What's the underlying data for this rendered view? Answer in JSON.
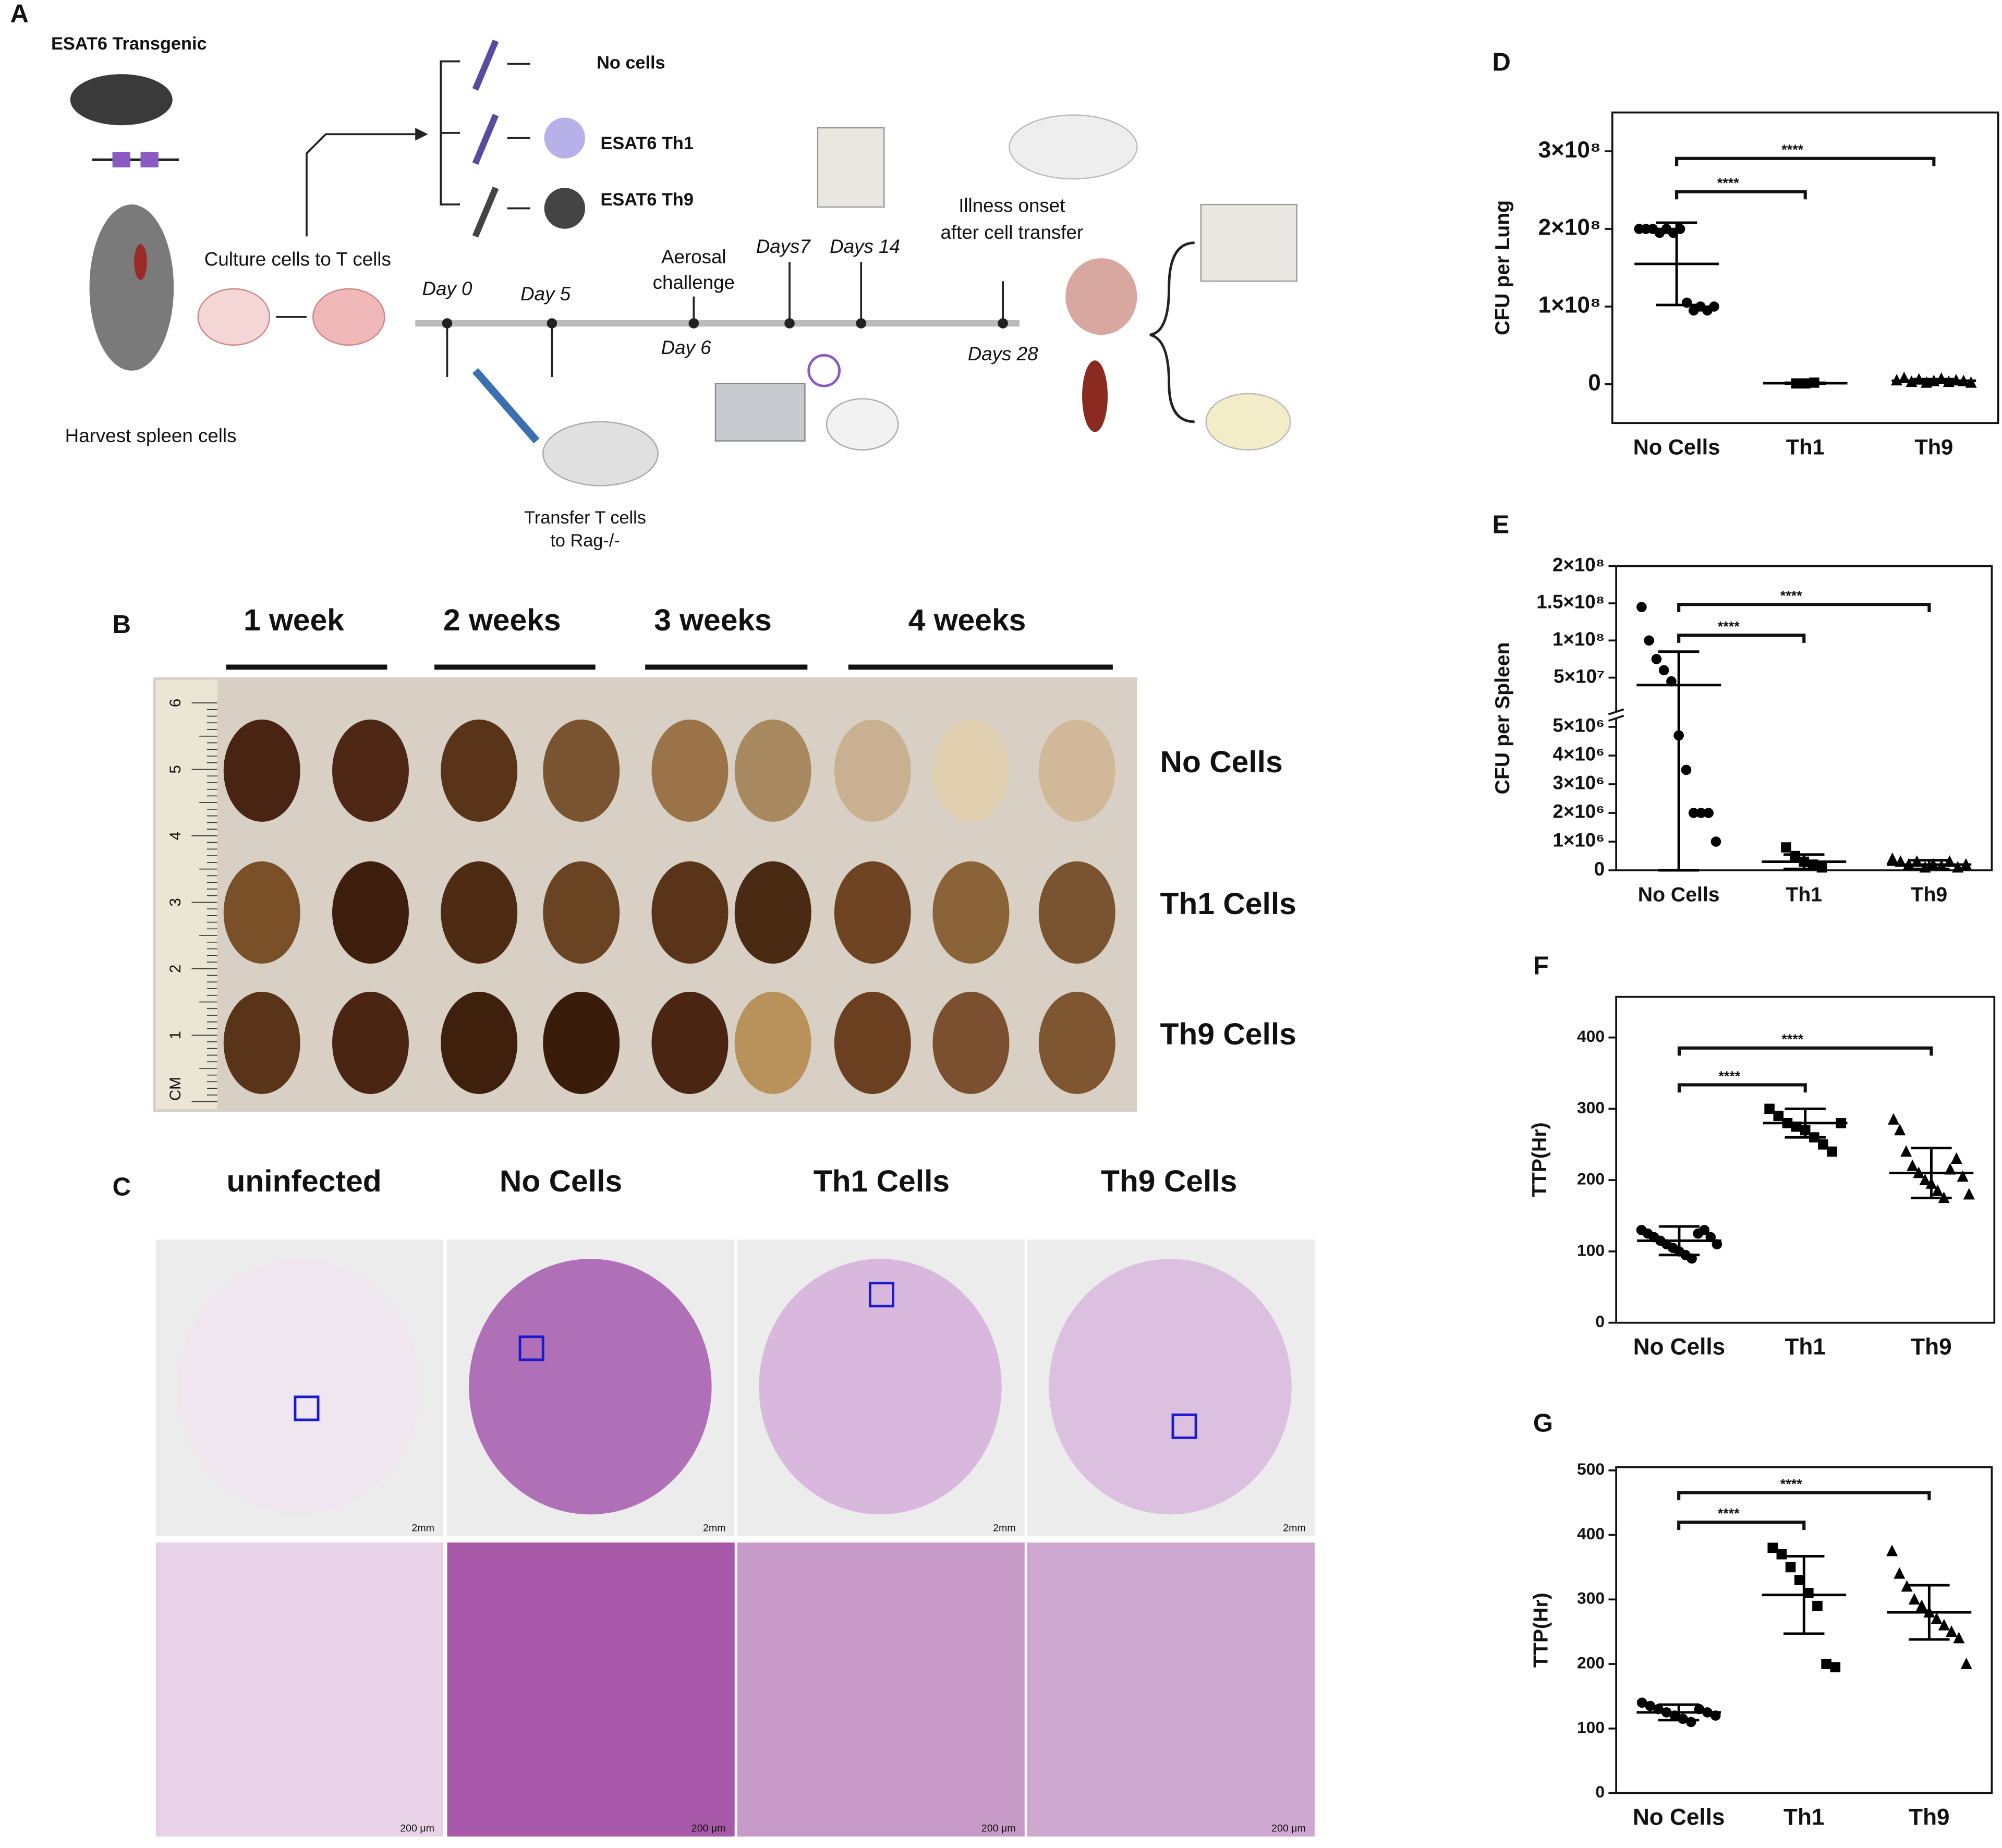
{
  "panel_a": {
    "label": "A",
    "strain": "ESAT6 Transgenic",
    "harvest": "Harvest spleen cells",
    "culture": "Culture cells to T cells",
    "groups": [
      "No cells",
      "ESAT6 Th1",
      "ESAT6 Th9"
    ],
    "timeline": {
      "day0": "Day 0",
      "day5": "Day 5",
      "aerosol": [
        "Aerosal",
        "challenge"
      ],
      "day6": "Day 6",
      "days7": "Days7",
      "days14": "Days 14",
      "illness": [
        "Illness onset",
        "after cell transfer"
      ],
      "days28": "Days 28"
    },
    "transfer": [
      "Transfer  T cells",
      "to Rag-/-"
    ]
  },
  "panel_b": {
    "label": "B",
    "columns": [
      "1 week",
      "2 weeks",
      "3 weeks",
      "4 weeks"
    ],
    "rows": [
      "No Cells",
      "Th1 Cells",
      "Th9 Cells"
    ],
    "ruler_unit": "CM",
    "ruler_numbers": [
      "1",
      "2",
      "3",
      "4",
      "5",
      "6"
    ]
  },
  "panel_c": {
    "label": "C",
    "columns": [
      "uninfected",
      "No Cells",
      "Th1 Cells",
      "Th9 Cells"
    ],
    "scale_top": "2mm",
    "scale_bottom": "200 μm"
  },
  "chart_data": [
    {
      "type": "scatter",
      "panel_label": "D",
      "y_label": "CFU per Lung",
      "categories": [
        "No Cells",
        "Th1",
        "Th9"
      ],
      "markers": [
        "circle",
        "square",
        "triangle"
      ],
      "color": "#000000",
      "groups": [
        [
          200000000,
          200000000,
          200000000,
          195000000,
          200000000,
          195000000,
          200000000,
          105000000,
          95000000,
          100000000,
          95000000,
          100000000
        ],
        [
          1000000,
          1000000,
          2000000
        ],
        [
          5000000,
          8000000,
          3000000,
          6000000,
          2000000,
          4000000,
          7000000,
          3000000,
          5000000,
          4000000,
          2000000
        ]
      ],
      "mean": [
        155000000,
        1300000,
        4500000
      ],
      "sd": [
        53000000,
        500000,
        2000000
      ],
      "ylim": [
        -50000000,
        350000000
      ],
      "yticks": [
        0,
        {
          "value": 100000000,
          "label": "1×10⁸"
        },
        {
          "value": 200000000,
          "label": "2×10⁸"
        },
        {
          "value": 300000000,
          "label": "3×10⁸"
        }
      ],
      "annotations": [
        "****",
        "****"
      ]
    },
    {
      "type": "scatter",
      "panel_label": "E",
      "y_label": "CFU per Spleen",
      "categories": [
        "No Cells",
        "Th1",
        "Th9"
      ],
      "markers": [
        "circle",
        "square",
        "triangle"
      ],
      "color": "#000000",
      "groups": [
        [
          145000000,
          100000000,
          75000000,
          60000000,
          45000000,
          4700000,
          3500000,
          2000000,
          2000000,
          2000000,
          1000000
        ],
        [
          800000,
          500000,
          300000,
          200000,
          100000
        ],
        [
          400000,
          300000,
          200000,
          300000,
          100000,
          200000,
          150000,
          300000,
          100000,
          200000
        ]
      ],
      "mean": [
        40000000,
        300000,
        200000
      ],
      "sd": [
        45000000,
        250000,
        150000
      ],
      "ylim": [
        0,
        5300000
      ],
      "yticks": [
        0,
        {
          "value": 1000000,
          "label": "1×10⁶"
        },
        {
          "value": 2000000,
          "label": "2×10⁶"
        },
        {
          "value": 3000000,
          "label": "3×10⁶"
        },
        {
          "value": 4000000,
          "label": "4×10⁶"
        },
        {
          "value": 5000000,
          "label": "5×10⁶"
        }
      ],
      "y_upper_lim": [
        4000000,
        200000000
      ],
      "y_upper_ticks": [
        {
          "value": 50000000,
          "label": "5×10⁷"
        },
        {
          "value": 100000000,
          "label": "1×10⁸"
        },
        {
          "value": 150000000,
          "label": "1.5×10⁸"
        },
        {
          "value": 200000000,
          "label": "2×10⁸"
        }
      ],
      "annotations": [
        "****",
        "****"
      ]
    },
    {
      "type": "scatter",
      "panel_label": "F",
      "y_label": "TTP(Hr)",
      "categories": [
        "No Cells",
        "Th1",
        "Th9"
      ],
      "markers": [
        "circle",
        "square",
        "triangle"
      ],
      "color": "#000000",
      "groups": [
        [
          130,
          125,
          120,
          115,
          110,
          105,
          100,
          95,
          90,
          125,
          130,
          120,
          110
        ],
        [
          300,
          290,
          280,
          275,
          270,
          260,
          250,
          240,
          280
        ],
        [
          285,
          270,
          240,
          220,
          210,
          200,
          195,
          185,
          175,
          215,
          230,
          205,
          180
        ]
      ],
      "mean": [
        115,
        280,
        210
      ],
      "sd": [
        20,
        20,
        35
      ],
      "ylim": [
        0,
        457
      ],
      "yticks": [
        0,
        100,
        200,
        300,
        400
      ],
      "annotations": [
        "****",
        "****"
      ]
    },
    {
      "type": "scatter",
      "panel_label": "G",
      "y_label": "TTP(Hr)",
      "categories": [
        "No Cells",
        "Th1",
        "Th9"
      ],
      "markers": [
        "circle",
        "square",
        "triangle"
      ],
      "color": "#000000",
      "groups": [
        [
          140,
          135,
          130,
          125,
          120,
          115,
          110,
          130,
          125,
          120
        ],
        [
          380,
          370,
          350,
          330,
          310,
          290,
          200,
          195
        ],
        [
          375,
          340,
          320,
          300,
          290,
          280,
          270,
          260,
          250,
          240,
          200
        ]
      ],
      "mean": [
        125,
        307,
        280
      ],
      "sd": [
        12,
        60,
        42
      ],
      "ylim": [
        0,
        505
      ],
      "yticks": [
        0,
        100,
        200,
        300,
        400,
        500
      ],
      "annotations": [
        "****",
        "****"
      ]
    }
  ]
}
